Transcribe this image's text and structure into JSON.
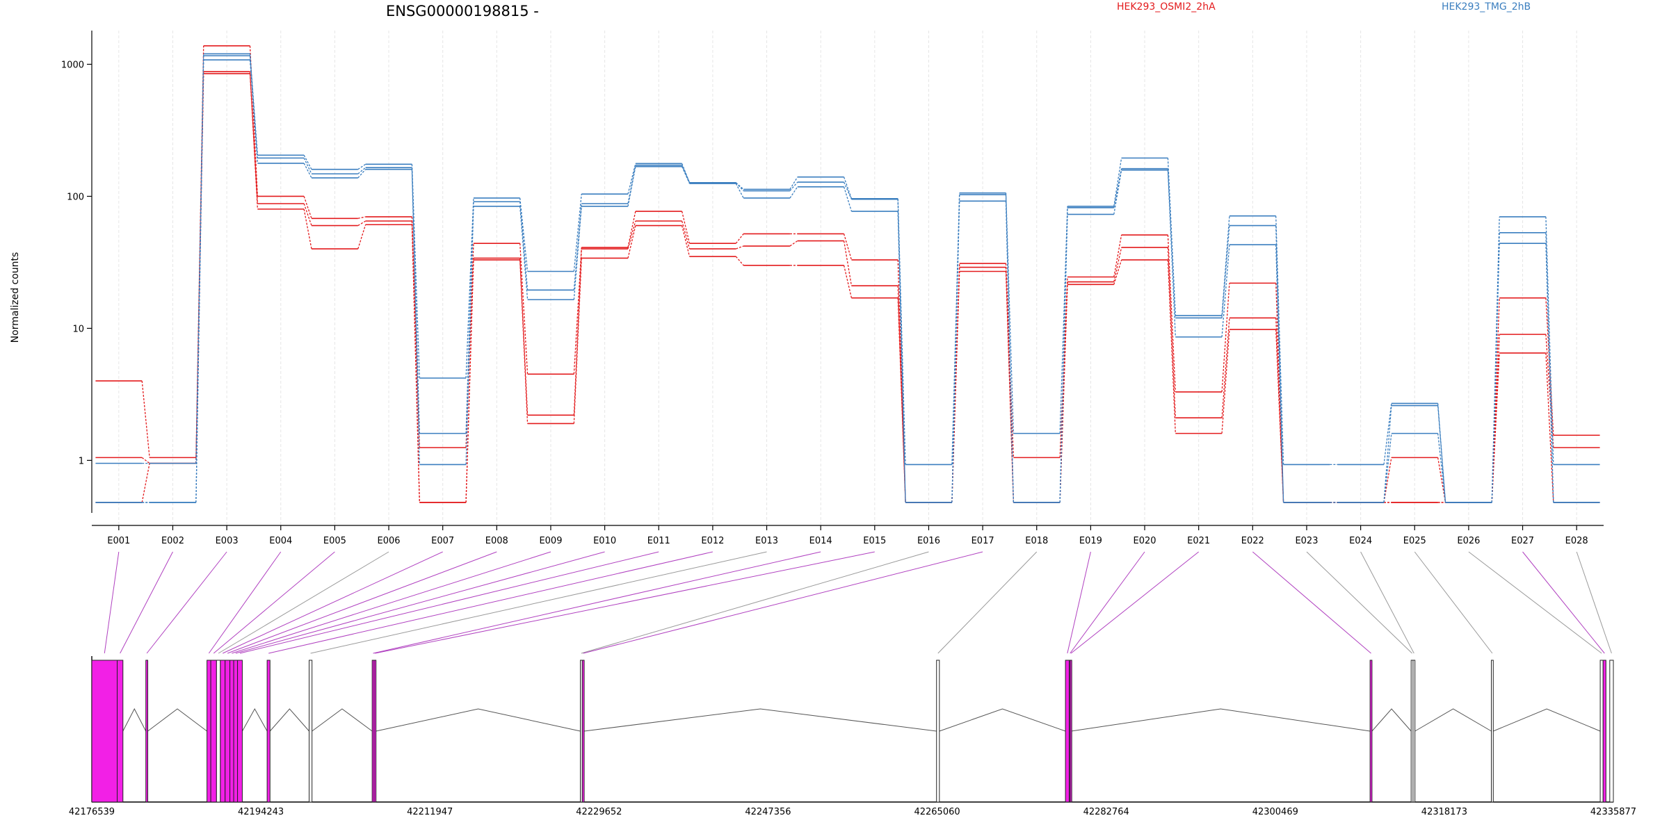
{
  "chart_data": {
    "type": "line",
    "title": "ENSG00000198815 -",
    "ylabel": "Normalized counts",
    "yscale": "log",
    "ylim": [
      0.4,
      1800
    ],
    "yticks": [
      1,
      10,
      100,
      1000
    ],
    "ytick_labels": [
      "1",
      "10",
      "100",
      "1000"
    ],
    "grid": "vertical-dashed",
    "legend": [
      {
        "name": "HEK293_OSMI2_2hA",
        "color": "#e31a1c"
      },
      {
        "name": "HEK293_TMG_2hB",
        "color": "#3a7ebf"
      }
    ],
    "categories": [
      "E001",
      "E002",
      "E003",
      "E004",
      "E005",
      "E006",
      "E007",
      "E008",
      "E009",
      "E010",
      "E011",
      "E012",
      "E013",
      "E014",
      "E015",
      "E016",
      "E017",
      "E018",
      "E019",
      "E020",
      "E021",
      "E022",
      "E023",
      "E024",
      "E025",
      "E026",
      "E027",
      "E028"
    ],
    "series": [
      {
        "group": 0,
        "values": [
          4,
          1.05,
          1380,
          100,
          68,
          70,
          1.25,
          44,
          4.5,
          41,
          77,
          44,
          52,
          52,
          33,
          0.48,
          31,
          1.05,
          24.5,
          51,
          3.3,
          22,
          0.48,
          0.48,
          1.05,
          0.48,
          17,
          1.55
        ]
      },
      {
        "group": 0,
        "values": [
          1.05,
          0.95,
          880,
          88,
          60,
          65,
          0.48,
          34,
          2.2,
          40,
          65,
          40,
          42,
          46,
          21,
          0.48,
          29,
          0.48,
          22.5,
          41,
          2.1,
          12,
          0.48,
          0.48,
          0.48,
          0.48,
          9,
          1.25
        ]
      },
      {
        "group": 0,
        "values": [
          0.48,
          0.95,
          850,
          80,
          40,
          61,
          0.48,
          33,
          1.9,
          34,
          60,
          35,
          30,
          30,
          17,
          0.48,
          27,
          0.48,
          21.5,
          33,
          1.6,
          9.8,
          0.48,
          0.48,
          0.48,
          0.48,
          6.5,
          0.48
        ]
      },
      {
        "group": 1,
        "values": [
          0.95,
          0.95,
          1200,
          205,
          160,
          175,
          4.2,
          97,
          27,
          104,
          177,
          127,
          113,
          140,
          96,
          0.93,
          106,
          1.6,
          84,
          195,
          12.5,
          71,
          0.93,
          0.93,
          2.7,
          0.48,
          70,
          0.93
        ]
      },
      {
        "group": 1,
        "values": [
          0.48,
          0.48,
          1080,
          195,
          148,
          165,
          1.6,
          91,
          19.5,
          88,
          172,
          127,
          110,
          128,
          95,
          0.48,
          103,
          0.48,
          82,
          162,
          12,
          60,
          0.48,
          0.48,
          2.6,
          0.48,
          53,
          0.48
        ]
      },
      {
        "group": 1,
        "values": [
          0.48,
          0.48,
          1160,
          178,
          138,
          160,
          0.93,
          84,
          16.5,
          84,
          168,
          125,
          97,
          118,
          77,
          0.48,
          92,
          0.48,
          73,
          158,
          8.6,
          43,
          0.48,
          0.48,
          1.6,
          0.48,
          44,
          0.48
        ]
      }
    ],
    "gene_model": {
      "x_ticks": [
        "42176539",
        "42194243",
        "42211947",
        "42229652",
        "42247356",
        "42265060",
        "42282764",
        "42300469",
        "42318173",
        "42335877"
      ],
      "x_range": [
        42176539,
        42335877
      ],
      "exons": [
        {
          "id": "E001",
          "start": 42176539,
          "end": 42179200,
          "significant": true
        },
        {
          "id": "E002",
          "start": 42179200,
          "end": 42179800,
          "significant": true
        },
        {
          "id": "E003",
          "start": 42182200,
          "end": 42182400,
          "significant": true
        },
        {
          "id": "E004",
          "start": 42188600,
          "end": 42189000,
          "significant": true
        },
        {
          "id": "E005",
          "start": 42189000,
          "end": 42189600,
          "significant": true
        },
        {
          "id": "E006",
          "start": 42189600,
          "end": 42190000,
          "significant": false
        },
        {
          "id": "E007",
          "start": 42190000,
          "end": 42190500,
          "significant": true
        },
        {
          "id": "E008",
          "start": 42190500,
          "end": 42191000,
          "significant": true
        },
        {
          "id": "E009",
          "start": 42191000,
          "end": 42191400,
          "significant": true
        },
        {
          "id": "E010",
          "start": 42191400,
          "end": 42191800,
          "significant": true
        },
        {
          "id": "E011",
          "start": 42191800,
          "end": 42192300,
          "significant": true
        },
        {
          "id": "E012",
          "start": 42194900,
          "end": 42195200,
          "significant": true
        },
        {
          "id": "E013",
          "start": 42199300,
          "end": 42199600,
          "significant": false
        },
        {
          "id": "E014",
          "start": 42205900,
          "end": 42206100,
          "significant": true
        },
        {
          "id": "E015",
          "start": 42206100,
          "end": 42206300,
          "significant": true
        },
        {
          "id": "E016",
          "start": 42227700,
          "end": 42227900,
          "significant": false
        },
        {
          "id": "E017",
          "start": 42227900,
          "end": 42228100,
          "significant": true
        },
        {
          "id": "E018",
          "start": 42265000,
          "end": 42265300,
          "significant": false
        },
        {
          "id": "E019",
          "start": 42278500,
          "end": 42278900,
          "significant": true
        },
        {
          "id": "E020",
          "start": 42278900,
          "end": 42279000,
          "significant": true
        },
        {
          "id": "E021",
          "start": 42279000,
          "end": 42279100,
          "significant": true
        },
        {
          "id": "E022",
          "start": 42310400,
          "end": 42310600,
          "significant": true
        },
        {
          "id": "E023",
          "start": 42314700,
          "end": 42314900,
          "significant": false
        },
        {
          "id": "E024",
          "start": 42314900,
          "end": 42315100,
          "significant": false
        },
        {
          "id": "E025",
          "start": 42323100,
          "end": 42323300,
          "significant": false
        },
        {
          "id": "E026",
          "start": 42334500,
          "end": 42334800,
          "significant": false
        },
        {
          "id": "E027",
          "start": 42334800,
          "end": 42335100,
          "significant": true
        },
        {
          "id": "E028",
          "start": 42335500,
          "end": 42335877,
          "significant": false
        }
      ],
      "colors": {
        "significant": "#f220e6",
        "normal": "#ffffff",
        "link_significant": "#b040c0",
        "link_normal": "#999999"
      }
    }
  }
}
